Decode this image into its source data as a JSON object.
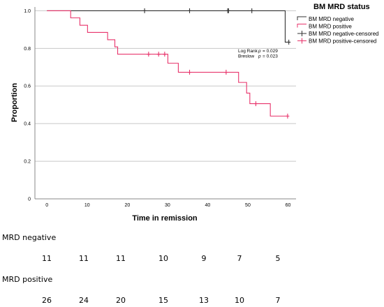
{
  "chart_data": {
    "type": "line",
    "subtype": "kaplan-meier",
    "xlabel": "Time in remission",
    "ylabel": "Proportion",
    "xlim": [
      -3,
      62
    ],
    "ylim": [
      0,
      1.02
    ],
    "xticks": [
      0,
      10,
      20,
      30,
      40,
      50,
      60
    ],
    "yticks": [
      0,
      0.2,
      0.4,
      0.6,
      0.8,
      1.0
    ],
    "ytick_labels": [
      "0",
      "0.2",
      "0.4",
      "0.6",
      "0.8",
      "1.0"
    ],
    "grid": "horizontal",
    "legend": {
      "title": "BM MRD status",
      "placement": "top-right",
      "entries": [
        {
          "label": "BM MRD negative",
          "color": "#333333",
          "style": "step"
        },
        {
          "label": "BM MRD positive",
          "color": "#e8336b",
          "style": "step"
        },
        {
          "label": "BM MRD negative-censored",
          "color": "#333333",
          "style": "censor"
        },
        {
          "label": "BM MRD positive-censored",
          "color": "#e8336b",
          "style": "censor"
        }
      ]
    },
    "annotation": {
      "rows": [
        {
          "test": "Log Rank",
          "p_label": "p",
          "value": "= 0.029"
        },
        {
          "test": "Breslow",
          "p_label": "p",
          "value": "= 0.023"
        }
      ]
    },
    "series": [
      {
        "name": "BM MRD negative",
        "color": "#333333",
        "steps": [
          [
            0,
            1.0
          ],
          [
            59.3,
            0.833
          ]
        ],
        "end": 60.2,
        "censored": [
          [
            24.3,
            1.0
          ],
          [
            35.5,
            1.0
          ],
          [
            45.0,
            1.0
          ],
          [
            45.2,
            1.0
          ],
          [
            51.0,
            1.0
          ],
          [
            60.2,
            0.833
          ]
        ]
      },
      {
        "name": "BM MRD positive",
        "color": "#e8336b",
        "steps": [
          [
            0,
            1.0
          ],
          [
            5.9,
            0.962
          ],
          [
            8.2,
            0.923
          ],
          [
            10.1,
            0.885
          ],
          [
            15.1,
            0.846
          ],
          [
            16.9,
            0.808
          ],
          [
            17.6,
            0.769
          ],
          [
            30.1,
            0.721
          ],
          [
            32.7,
            0.673
          ],
          [
            47.7,
            0.619
          ],
          [
            49.7,
            0.562
          ],
          [
            50.5,
            0.506
          ],
          [
            55.6,
            0.44
          ]
        ],
        "end": 60.0,
        "censored": [
          [
            25.3,
            0.769
          ],
          [
            27.8,
            0.769
          ],
          [
            29.3,
            0.769
          ],
          [
            35.5,
            0.673
          ],
          [
            44.6,
            0.673
          ],
          [
            52.0,
            0.506
          ],
          [
            59.9,
            0.44
          ]
        ]
      }
    ]
  },
  "risk_table": {
    "groups": [
      {
        "label": "MRD negative",
        "counts": [
          "11",
          "11",
          "11",
          "10",
          "9",
          "7",
          "5"
        ]
      },
      {
        "label": "MRD positive",
        "counts": [
          "26",
          "24",
          "20",
          "15",
          "13",
          "10",
          "7"
        ]
      }
    ]
  }
}
